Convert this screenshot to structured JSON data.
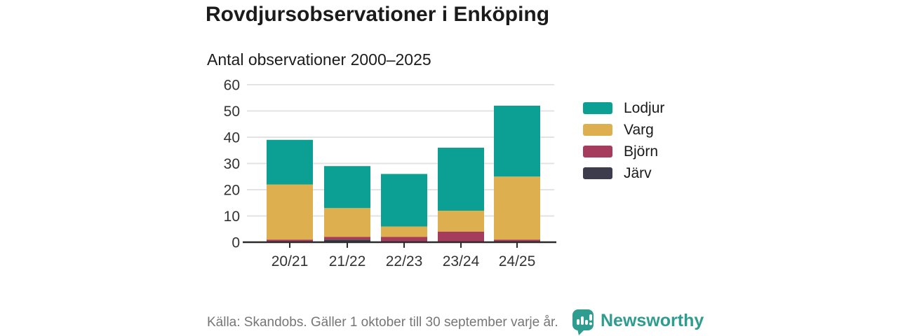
{
  "header": {
    "title": "Rovdjursobservationer i Enköping",
    "subtitle": "Antal observationer 2000–2025"
  },
  "footer": {
    "source": "Källa: Skandobs. Gäller 1 oktober till 30 september varje år.",
    "brand": "Newsworthy"
  },
  "colors": {
    "lodjur": "#0ba093",
    "varg": "#deaf4f",
    "bjorn": "#a53b5d",
    "jarv": "#3d3c4d",
    "gridline": "#e3e3e3",
    "axis_line": "#2b2b2b",
    "axis_text": "#333333",
    "brand_teal": "#2f9c90",
    "source_text": "#767676"
  },
  "chart_data": {
    "type": "bar",
    "stacked": true,
    "title": "Rovdjursobservationer i Enköping",
    "subtitle": "Antal observationer 2000–2025",
    "xlabel": "",
    "ylabel": "",
    "ylim": [
      0,
      60
    ],
    "yticks": [
      0,
      10,
      20,
      30,
      40,
      50,
      60
    ],
    "grid": true,
    "legend_position": "right",
    "categories": [
      "20/21",
      "21/22",
      "22/23",
      "23/24",
      "24/25"
    ],
    "series": [
      {
        "name": "Lodjur",
        "color": "#0ba093",
        "values": [
          17,
          16,
          20,
          24,
          27
        ]
      },
      {
        "name": "Varg",
        "color": "#deaf4f",
        "values": [
          21,
          11,
          4,
          8,
          24
        ]
      },
      {
        "name": "Björn",
        "color": "#a53b5d",
        "values": [
          1,
          1,
          2,
          4,
          1
        ]
      },
      {
        "name": "Järv",
        "color": "#3d3c4d",
        "values": [
          0,
          1,
          0,
          0,
          0
        ]
      }
    ],
    "stack_order_bottom_to_top": [
      "Järv",
      "Björn",
      "Varg",
      "Lodjur"
    ],
    "totals": [
      39,
      29,
      26,
      36,
      52
    ]
  }
}
